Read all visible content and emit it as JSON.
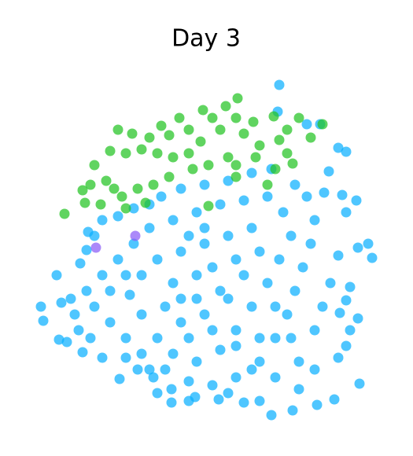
{
  "chart_data": {
    "type": "scatter",
    "title": "Day 3",
    "xlim": [
      0,
      450
    ],
    "ylim": [
      0,
      450
    ],
    "series": [
      {
        "color": "#0bb0ff",
        "x": [
          315,
          313,
          350,
          367,
          400,
          390,
          378,
          372,
          395,
          413,
          400,
          428,
          433,
          390,
          415,
          380,
          405,
          400,
          392,
          415,
          405,
          400,
          390,
          417,
          385,
          363,
          332,
          305,
          290,
          270,
          238,
          208,
          178,
          178,
          155,
          135,
          112,
          90,
          65,
          45,
          35,
          15,
          12,
          32,
          38,
          50,
          62,
          70,
          80,
          72,
          90,
          110,
          130,
          150,
          165,
          190,
          220,
          250,
          280,
          305,
          335,
          350,
          360,
          355,
          345,
          335,
          325,
          310,
          290,
          260,
          230,
          200,
          170,
          140,
          120,
          100,
          80,
          70,
          90,
          110,
          130,
          150,
          180,
          210,
          240,
          270,
          300,
          320,
          330,
          315,
          300,
          280,
          260,
          240,
          210,
          180,
          160,
          140,
          125,
          140,
          160,
          190,
          220,
          250,
          280,
          290,
          270,
          250,
          220,
          190,
          170,
          180,
          210,
          230,
          240,
          210,
          200,
          230,
          260,
          290,
          310,
          340,
          360,
          370,
          160,
          120,
          60,
          55,
          100,
          120,
          75,
          260,
          280,
          200,
          220,
          310,
          330,
          150,
          200,
          250,
          340,
          360,
          190
        ],
        "values": [
          432,
          398,
          382,
          382,
          347,
          352,
          322,
          295,
          292,
          285,
          270,
          230,
          212,
          215,
          225,
          180,
          175,
          158,
          142,
          135,
          120,
          100,
          85,
          52,
          32,
          25,
          18,
          12,
          30,
          28,
          32,
          35,
          28,
          45,
          60,
          70,
          58,
          85,
          92,
          105,
          108,
          132,
          150,
          190,
          155,
          160,
          205,
          222,
          240,
          245,
          260,
          265,
          275,
          280,
          290,
          300,
          305,
          310,
          320,
          325,
          305,
          290,
          260,
          230,
          200,
          170,
          140,
          110,
          80,
          60,
          50,
          55,
          70,
          90,
          110,
          130,
          150,
          170,
          190,
          210,
          230,
          250,
          260,
          270,
          280,
          285,
          290,
          270,
          240,
          210,
          180,
          150,
          120,
          95,
          80,
          90,
          110,
          140,
          165,
          190,
          210,
          220,
          230,
          240,
          250,
          220,
          190,
          160,
          140,
          130,
          150,
          180,
          190,
          200,
          170,
          160,
          110,
          120,
          100,
          110,
          60,
          80,
          120,
          150,
          40,
          85,
          120,
          140,
          170,
          190,
          110,
          210,
          70,
          240,
          250,
          150,
          110,
          70,
          30,
          40,
          45,
          70,
          160
        ]
      },
      {
        "color": "#22c322",
        "x": [
          262,
          247,
          218,
          230,
          188,
          165,
          110,
          128,
          150,
          175,
          200,
          260,
          282,
          308,
          340,
          325,
          315,
          290,
          270,
          240,
          215,
          200,
          180,
          160,
          140,
          120,
          100,
          80,
          95,
          75,
          65,
          68,
          42,
          88,
          115,
          135,
          155,
          175,
          205,
          225,
          250,
          260,
          285,
          325,
          332,
          310,
          300,
          260,
          225,
          145,
          120,
          105,
          355,
          370
        ],
        "values": [
          415,
          405,
          400,
          390,
          390,
          380,
          375,
          370,
          365,
          368,
          375,
          390,
          385,
          392,
          390,
          375,
          362,
          355,
          370,
          375,
          360,
          345,
          340,
          345,
          350,
          345,
          348,
          330,
          310,
          305,
          298,
          282,
          268,
          280,
          290,
          300,
          305,
          315,
          325,
          330,
          340,
          330,
          340,
          345,
          332,
          325,
          305,
          315,
          278,
          282,
          275,
          300,
          365,
          382
        ]
      },
      {
        "color": "#8a5cf6",
        "x": [
          82,
          132
        ],
        "values": [
          225,
          240
        ]
      }
    ]
  }
}
